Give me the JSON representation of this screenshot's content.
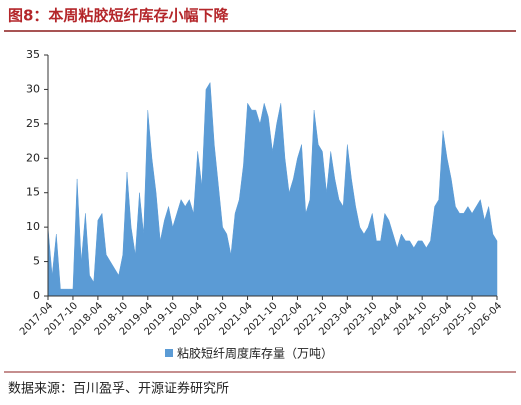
{
  "chart_data": {
    "type": "area",
    "title": "图8：本周粘胶短纤库存小幅下降",
    "source": "数据来源：百川盈孚、开源证券研究所",
    "categories": [
      "2017-04",
      null,
      null,
      null,
      null,
      null,
      "2017-10",
      null,
      null,
      null,
      null,
      null,
      "2018-04",
      null,
      null,
      null,
      null,
      null,
      "2018-10",
      null,
      null,
      null,
      null,
      null,
      "2019-04",
      null,
      null,
      null,
      null,
      null,
      "2019-10",
      null,
      null,
      null,
      null,
      null,
      "2020-04",
      null,
      null,
      null,
      null,
      null,
      "2020-10",
      null,
      null,
      null,
      null,
      null,
      "2021-04",
      null,
      null,
      null,
      null,
      null,
      "2021-10",
      null,
      null,
      null,
      null,
      null,
      "2022-04",
      null,
      null,
      null,
      null,
      null,
      "2022-10",
      null,
      null,
      null,
      null,
      null,
      "2023-04",
      null,
      null,
      null,
      null,
      null,
      "2023-10",
      null,
      null,
      null,
      null,
      null,
      "2024-04",
      null,
      null,
      null,
      null,
      null,
      "2024-10",
      null,
      null,
      null,
      null,
      null,
      "2025-04",
      null,
      null,
      null,
      null,
      null,
      "2025-10",
      null,
      null,
      null,
      null,
      null,
      "2026-04"
    ],
    "series": [
      {
        "name": "粘胶短纤周度库存量（万吨）",
        "color": "#5b9bd5",
        "values": [
          10,
          3,
          9,
          1,
          1,
          1,
          1,
          17,
          5,
          12,
          3,
          2,
          11,
          12,
          6,
          5,
          4,
          3,
          6,
          18,
          10,
          6,
          15,
          9,
          27,
          20,
          15,
          8,
          11,
          13,
          10,
          12,
          14,
          13,
          14,
          12,
          21,
          16,
          30,
          31,
          22,
          16,
          10,
          9,
          6,
          12,
          14,
          19,
          28,
          27,
          27,
          25,
          28,
          26,
          21,
          25,
          28,
          20,
          15,
          17,
          20,
          22,
          12,
          14,
          27,
          22,
          21,
          15,
          21,
          17,
          14,
          13,
          22,
          17,
          13,
          10,
          9,
          10,
          12,
          8,
          8,
          12,
          11,
          9,
          7,
          9,
          8,
          8,
          7,
          8,
          8,
          7,
          8,
          13,
          14,
          24,
          20,
          17,
          13,
          12,
          12,
          13,
          12,
          13,
          14,
          11,
          13,
          9,
          8
        ]
      }
    ],
    "ylim": [
      0,
      35
    ],
    "yticks": [
      0,
      5,
      10,
      15,
      20,
      25,
      30,
      35
    ],
    "grid": false
  }
}
